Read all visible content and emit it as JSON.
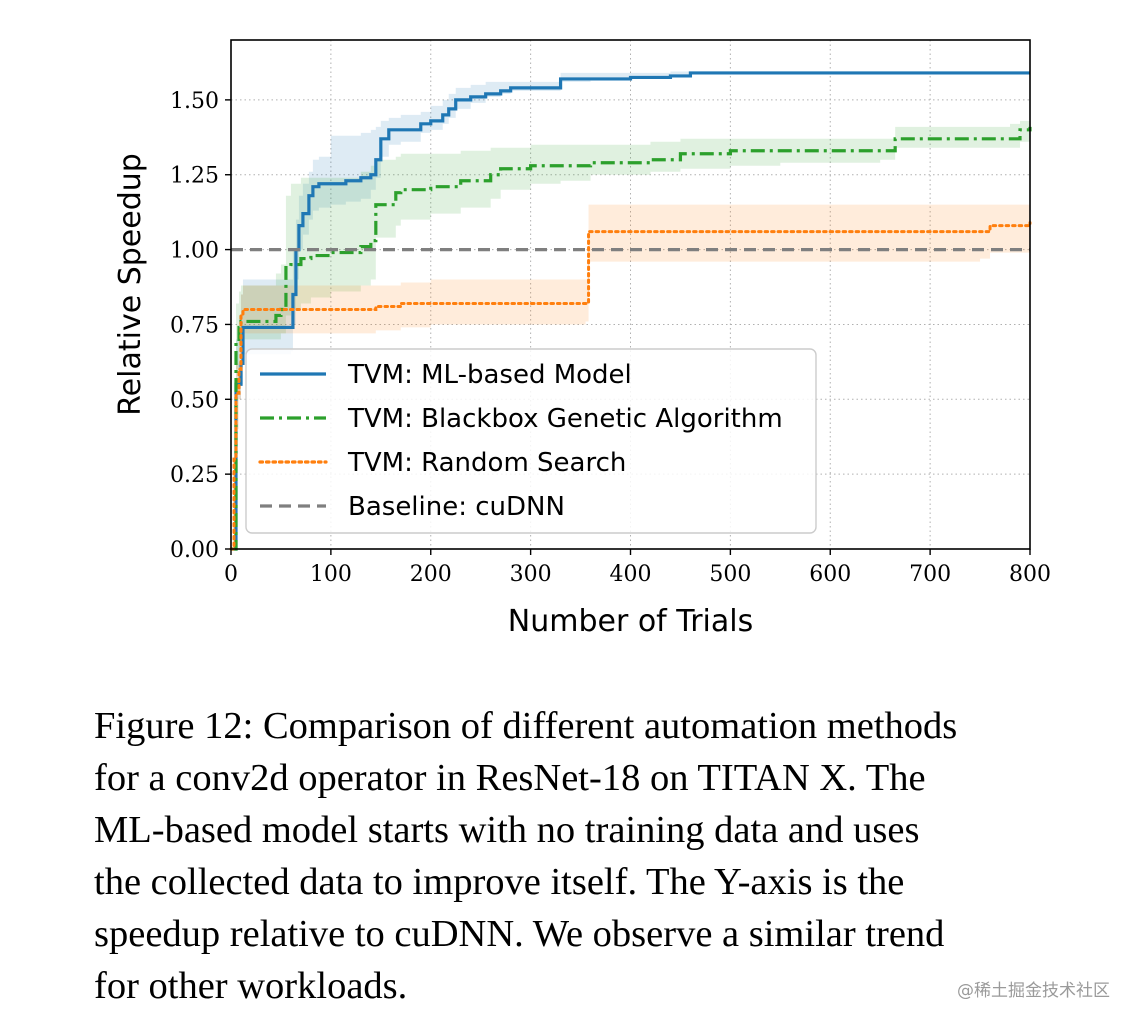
{
  "chart_data": {
    "type": "line",
    "xlabel": "Number of Trials",
    "ylabel": "Relative Speedup",
    "xlim": [
      0,
      800
    ],
    "ylim": [
      0,
      1.7
    ],
    "xticks": [
      "0",
      "100",
      "200",
      "300",
      "400",
      "500",
      "600",
      "700",
      "800"
    ],
    "yticks": [
      "0.00",
      "0.25",
      "0.50",
      "0.75",
      "1.00",
      "1.25",
      "1.50"
    ],
    "grid": true,
    "legend_position": "lower-left",
    "series": [
      {
        "name": "TVM: ML-based Model",
        "color": "#1f77b4",
        "style": "solid",
        "x": [
          0,
          5,
          8,
          10,
          12,
          30,
          60,
          62,
          65,
          68,
          72,
          78,
          82,
          88,
          100,
          115,
          130,
          140,
          145,
          150,
          158,
          170,
          190,
          200,
          212,
          218,
          225,
          240,
          255,
          270,
          280,
          300,
          330,
          360,
          400,
          440,
          460,
          500,
          600,
          700,
          800
        ],
        "y": [
          0,
          0.55,
          0.55,
          0.62,
          0.74,
          0.74,
          0.74,
          0.85,
          1.0,
          1.08,
          1.12,
          1.18,
          1.21,
          1.22,
          1.22,
          1.23,
          1.24,
          1.25,
          1.3,
          1.37,
          1.4,
          1.4,
          1.42,
          1.43,
          1.45,
          1.47,
          1.5,
          1.51,
          1.52,
          1.53,
          1.54,
          1.54,
          1.57,
          1.57,
          1.575,
          1.58,
          1.59,
          1.59,
          1.59,
          1.59,
          1.59
        ],
        "band_lo": [
          0,
          0.5,
          0.5,
          0.55,
          0.65,
          0.65,
          0.66,
          0.75,
          0.9,
          1.0,
          1.05,
          1.1,
          1.13,
          1.14,
          1.15,
          1.16,
          1.17,
          1.2,
          1.24,
          1.31,
          1.35,
          1.36,
          1.39,
          1.4,
          1.42,
          1.44,
          1.47,
          1.49,
          1.51,
          1.52,
          1.53,
          1.53,
          1.56,
          1.565,
          1.57,
          1.575,
          1.585,
          1.585,
          1.585,
          1.585,
          1.585
        ],
        "band_hi": [
          0,
          0.7,
          0.78,
          0.85,
          0.9,
          0.9,
          0.9,
          1.0,
          1.1,
          1.18,
          1.22,
          1.26,
          1.3,
          1.31,
          1.38,
          1.38,
          1.39,
          1.4,
          1.41,
          1.43,
          1.44,
          1.45,
          1.46,
          1.48,
          1.5,
          1.52,
          1.54,
          1.55,
          1.56,
          1.56,
          1.56,
          1.56,
          1.59,
          1.59,
          1.59,
          1.595,
          1.595,
          1.595,
          1.595,
          1.595,
          1.595
        ]
      },
      {
        "name": "TVM: Blackbox Genetic Algorithm",
        "color": "#2ca02c",
        "style": "dashdot",
        "x": [
          0,
          5,
          8,
          10,
          45,
          50,
          55,
          60,
          70,
          80,
          100,
          130,
          140,
          145,
          165,
          170,
          200,
          230,
          260,
          270,
          300,
          330,
          360,
          420,
          450,
          500,
          550,
          600,
          650,
          665,
          700,
          780,
          790,
          800
        ],
        "y": [
          0,
          0.7,
          0.74,
          0.76,
          0.78,
          0.8,
          0.94,
          0.95,
          0.97,
          0.98,
          0.99,
          1.01,
          1.03,
          1.15,
          1.19,
          1.2,
          1.21,
          1.23,
          1.25,
          1.27,
          1.28,
          1.28,
          1.29,
          1.3,
          1.32,
          1.33,
          1.33,
          1.33,
          1.33,
          1.37,
          1.37,
          1.37,
          1.4,
          1.41
        ],
        "band_lo": [
          0,
          0.6,
          0.66,
          0.7,
          0.7,
          0.72,
          0.78,
          0.8,
          0.82,
          0.84,
          0.86,
          0.88,
          0.9,
          1.04,
          1.08,
          1.1,
          1.12,
          1.14,
          1.17,
          1.2,
          1.22,
          1.23,
          1.25,
          1.26,
          1.27,
          1.28,
          1.29,
          1.29,
          1.3,
          1.34,
          1.34,
          1.34,
          1.36,
          1.37
        ],
        "band_hi": [
          0,
          0.82,
          0.86,
          0.88,
          0.92,
          0.95,
          1.18,
          1.22,
          1.24,
          1.24,
          1.24,
          1.26,
          1.28,
          1.3,
          1.31,
          1.32,
          1.32,
          1.33,
          1.34,
          1.34,
          1.35,
          1.35,
          1.35,
          1.36,
          1.37,
          1.37,
          1.37,
          1.37,
          1.37,
          1.41,
          1.41,
          1.42,
          1.43,
          1.44
        ]
      },
      {
        "name": "TVM: Random Search",
        "color": "#ff7f0e",
        "style": "dotted",
        "x": [
          0,
          3,
          5,
          8,
          10,
          12,
          60,
          140,
          145,
          170,
          200,
          355,
          358,
          400,
          500,
          600,
          700,
          750,
          760,
          800
        ],
        "y": [
          0,
          0.3,
          0.52,
          0.6,
          0.78,
          0.8,
          0.8,
          0.8,
          0.81,
          0.82,
          0.82,
          0.82,
          1.06,
          1.06,
          1.06,
          1.06,
          1.06,
          1.06,
          1.08,
          1.09
        ],
        "band_lo": [
          0,
          0.2,
          0.4,
          0.5,
          0.68,
          0.72,
          0.72,
          0.72,
          0.73,
          0.74,
          0.75,
          0.76,
          0.96,
          0.96,
          0.96,
          0.96,
          0.96,
          0.97,
          0.99,
          1.02
        ],
        "band_hi": [
          0,
          0.45,
          0.62,
          0.7,
          0.85,
          0.88,
          0.88,
          0.88,
          0.88,
          0.89,
          0.9,
          0.9,
          1.15,
          1.15,
          1.15,
          1.15,
          1.15,
          1.15,
          1.15,
          1.15
        ]
      },
      {
        "name": "Baseline: cuDNN",
        "color": "#7f7f7f",
        "style": "dashed",
        "x": [
          0,
          800
        ],
        "y": [
          1.0,
          1.0
        ]
      }
    ]
  },
  "caption": {
    "lines": [
      "Figure 12: Comparison of different automation methods",
      "for a conv2d operator in ResNet-18 on TITAN X. The",
      "ML-based model starts with no training data and uses",
      "the collected data to improve itself.  The Y-axis is the",
      "speedup relative to cuDNN. We observe a similar trend",
      "for other workloads."
    ]
  },
  "watermark": "@稀土掘金技术社区"
}
